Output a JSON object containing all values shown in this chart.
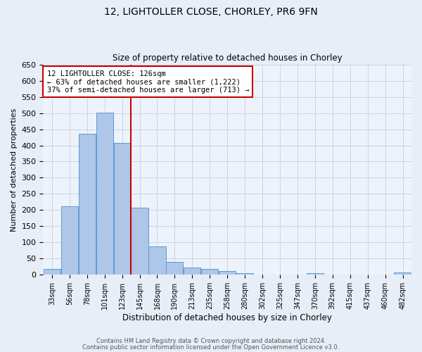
{
  "title_line1": "12, LIGHTOLLER CLOSE, CHORLEY, PR6 9FN",
  "title_line2": "Size of property relative to detached houses in Chorley",
  "xlabel": "Distribution of detached houses by size in Chorley",
  "ylabel": "Number of detached properties",
  "bin_labels": [
    "33sqm",
    "56sqm",
    "78sqm",
    "101sqm",
    "123sqm",
    "145sqm",
    "168sqm",
    "190sqm",
    "213sqm",
    "235sqm",
    "258sqm",
    "280sqm",
    "302sqm",
    "325sqm",
    "347sqm",
    "370sqm",
    "392sqm",
    "415sqm",
    "437sqm",
    "460sqm",
    "482sqm"
  ],
  "bar_values": [
    18,
    212,
    437,
    501,
    408,
    207,
    87,
    40,
    22,
    18,
    11,
    5,
    0,
    0,
    0,
    4,
    0,
    0,
    0,
    0,
    6
  ],
  "bar_color": "#aec6e8",
  "bar_edge_color": "#5b9bd5",
  "vline_x_idx": 4,
  "vline_color": "#cc0000",
  "annotation_text": "12 LIGHTOLLER CLOSE: 126sqm\n← 63% of detached houses are smaller (1,222)\n37% of semi-detached houses are larger (713) →",
  "annotation_box_color": "#ffffff",
  "annotation_box_edge": "#cc0000",
  "ylim": [
    0,
    650
  ],
  "yticks": [
    0,
    50,
    100,
    150,
    200,
    250,
    300,
    350,
    400,
    450,
    500,
    550,
    600,
    650
  ],
  "footer_line1": "Contains HM Land Registry data © Crown copyright and database right 2024.",
  "footer_line2": "Contains public sector information licensed under the Open Government Licence v3.0.",
  "bg_color": "#e8eef8",
  "plot_bg_color": "#eef3fb",
  "grid_color": "#c5cfe0"
}
